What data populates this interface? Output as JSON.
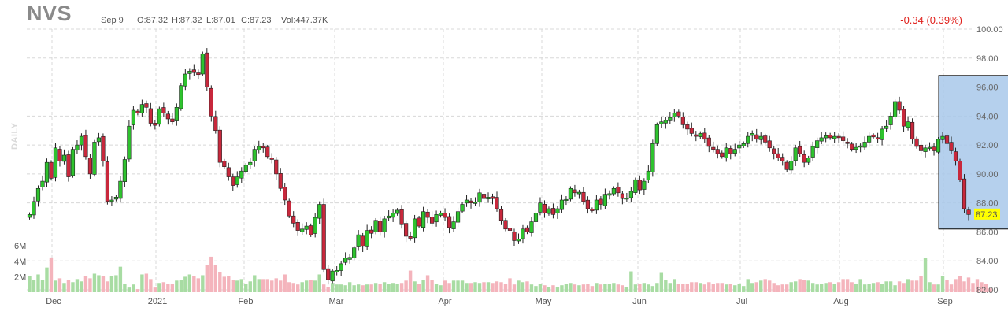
{
  "header": {
    "ticker": "NVS",
    "date": "Sep 9",
    "open": "O:87.32",
    "high": "H:87.32",
    "low": "L:87.01",
    "close": "C:87.23",
    "volume": "Vol:447.37K",
    "change": "-0.34 (0.39%)",
    "period_label": "DAILY"
  },
  "colors": {
    "up": "#2ec32e",
    "down": "#c8283c",
    "vol_up": "#a8dca3",
    "vol_down": "#f4b4bc",
    "highlight": "#a8c8ea",
    "price_tag": "#ffff00"
  },
  "chart_data": {
    "type": "candlestick",
    "price_axis": {
      "ticks": [
        "100.00",
        "98.00",
        "96.00",
        "94.00",
        "92.00",
        "90.00",
        "88.00",
        "86.00",
        "84.00",
        "82.00"
      ],
      "ylim": [
        82,
        100
      ]
    },
    "volume_axis": {
      "ticks": [
        "6M",
        "4M",
        "2M"
      ],
      "ylim": [
        0,
        7
      ]
    },
    "x_labels": [
      "Dec",
      "2021",
      "Feb",
      "Mar",
      "Apr",
      "May",
      "Jun",
      "Jul",
      "Aug",
      "Sep"
    ],
    "last_price": "87.23",
    "highlight_range": {
      "start_index": 211,
      "end_index": 232,
      "y_low": 86.2,
      "y_high": 96.8
    },
    "closes": [
      87.2,
      88.1,
      89.0,
      89.5,
      90.8,
      89.7,
      91.8,
      90.9,
      91.3,
      89.8,
      91.7,
      92.0,
      92.6,
      91.2,
      90.0,
      92.2,
      92.5,
      90.9,
      88.1,
      88.2,
      88.4,
      89.5,
      91.0,
      93.3,
      94.4,
      94.2,
      94.8,
      94.6,
      93.5,
      93.4,
      94.5,
      94.2,
      93.8,
      93.6,
      94.6,
      96.1,
      96.9,
      97.1,
      97.0,
      96.9,
      98.3,
      96.0,
      94.0,
      93.0,
      90.8,
      90.5,
      89.8,
      89.2,
      89.8,
      90.2,
      90.6,
      90.8,
      91.7,
      91.9,
      91.8,
      91.2,
      91.0,
      90.0,
      89.0,
      88.2,
      87.1,
      86.6,
      86.1,
      86.2,
      86.4,
      85.8,
      87.0,
      87.9,
      83.4,
      82.7,
      83.3,
      83.3,
      83.8,
      84.2,
      84.2,
      84.9,
      85.8,
      85.0,
      86.1,
      85.9,
      86.8,
      86.0,
      86.9,
      87.1,
      87.3,
      87.5,
      86.5,
      85.7,
      85.6,
      86.9,
      86.4,
      87.4,
      87.0,
      86.6,
      87.2,
      87.3,
      87.0,
      86.3,
      86.7,
      87.4,
      87.9,
      88.2,
      88.0,
      88.0,
      88.7,
      88.3,
      88.4,
      88.3,
      87.6,
      86.8,
      86.2,
      86.1,
      85.4,
      85.5,
      86.2,
      86.0,
      86.7,
      87.3,
      88.0,
      87.3,
      87.6,
      87.2,
      87.6,
      88.2,
      88.2,
      89.0,
      88.7,
      88.7,
      88.1,
      87.6,
      87.5,
      88.2,
      87.9,
      88.6,
      88.6,
      89.0,
      88.7,
      88.3,
      88.3,
      88.8,
      89.6,
      88.9,
      89.5,
      90.2,
      92.1,
      93.4,
      93.6,
      93.7,
      93.9,
      94.2,
      94.0,
      93.4,
      93.1,
      92.8,
      92.6,
      92.8,
      92.4,
      91.9,
      91.7,
      91.4,
      91.2,
      91.8,
      91.4,
      91.7,
      92.0,
      92.1,
      92.6,
      92.8,
      92.4,
      92.6,
      92.2,
      91.8,
      91.4,
      91.1,
      90.9,
      90.3,
      90.9,
      91.8,
      91.4,
      90.8,
      91.1,
      91.9,
      92.3,
      92.5,
      92.6,
      92.5,
      92.6,
      92.5,
      92.3,
      92.1,
      91.7,
      91.8,
      91.9,
      92.2,
      92.6,
      92.6,
      92.4,
      93.1,
      93.3,
      94.0,
      95.0,
      94.4,
      93.3,
      93.6,
      92.4,
      91.9,
      91.6,
      91.8,
      91.8,
      91.6,
      92.4,
      92.6,
      92.1,
      91.6,
      90.9,
      89.6,
      87.6,
      87.2
    ],
    "volumes": [
      2.1,
      1.6,
      2.3,
      1.6,
      3.2,
      4.5,
      1.5,
      1.8,
      1.2,
      1.6,
      1.3,
      1.7,
      1.4,
      2.1,
      1.8,
      2.4,
      2.2,
      2.1,
      1.4,
      2.1,
      2.2,
      3.3,
      1.1,
      0.6,
      1.0,
      0.4,
      2.3,
      2.4,
      1.7,
      0.6,
      1.2,
      1.3,
      1.1,
      1.1,
      1.5,
      1.6,
      2.0,
      2.3,
      2.1,
      1.8,
      2.2,
      3.5,
      4.6,
      3.5,
      2.6,
      2.0,
      2.1,
      1.6,
      1.5,
      1.7,
      1.1,
      1.4,
      2.2,
      1.7,
      1.7,
      1.7,
      1.5,
      1.8,
      1.5,
      2.3,
      1.3,
      1.2,
      1.0,
      1.3,
      1.5,
      1.6,
      1.5,
      2.3,
      1.0,
      0.7,
      1.2,
      1.0,
      1.0,
      0.9,
      1.3,
      0.9,
      1.0,
      0.9,
      1.0,
      1.0,
      1.2,
      1.1,
      1.3,
      1.1,
      1.2,
      1.1,
      1.2,
      1.5,
      2.8,
      1.4,
      1.1,
      1.6,
      2.2,
      1.6,
      1.1,
      0.9,
      1.5,
      1.2,
      1.5,
      1.5,
      1.5,
      1.2,
      1.2,
      1.3,
      1.2,
      1.3,
      1.3,
      1.2,
      1.4,
      1.3,
      1.1,
      1.8,
      1.0,
      1.5,
      1.3,
      1.4,
      1.0,
      0.8,
      1.1,
      0.9,
      0.7,
      0.9,
      0.7,
      0.9,
      1.1,
      1.2,
      1.0,
      0.9,
      1.0,
      1.1,
      0.8,
      1.2,
      1.0,
      1.1,
      1.1,
      1.2,
      1.0,
      0.9,
      0.7,
      2.7,
      1.0,
      1.1,
      1.2,
      1.0,
      0.8,
      1.2,
      2.5,
      1.6,
      1.2,
      1.7,
      1.1,
      1.1,
      1.1,
      1.3,
      1.3,
      1.2,
      1.0,
      1.3,
      1.1,
      1.2,
      1.2,
      1.0,
      1.1,
      0.9,
      1.1,
      0.8,
      1.7,
      1.2,
      1.3,
      1.5,
      1.7,
      1.5,
      1.2,
      0.9,
      1.0,
      1.0,
      1.3,
      1.4,
      1.7,
      1.6,
      1.5,
      1.2,
      1.0,
      1.1,
      1.2,
      1.3,
      1.1,
      1.3,
      1.7,
      1.7,
      1.3,
      1.1,
      1.7,
      1.0,
      1.1,
      1.2,
      1.3,
      1.1,
      1.4,
      1.4,
      0.9,
      1.4,
      1.2,
      1.7,
      1.5,
      1.5,
      2.1,
      4.4,
      1.3,
      1.0,
      1.0,
      2.1,
      1.6,
      1.0,
      1.7,
      2.1,
      1.4,
      1.9,
      1.2,
      1.7,
      1.3,
      1.1,
      0.5
    ]
  }
}
